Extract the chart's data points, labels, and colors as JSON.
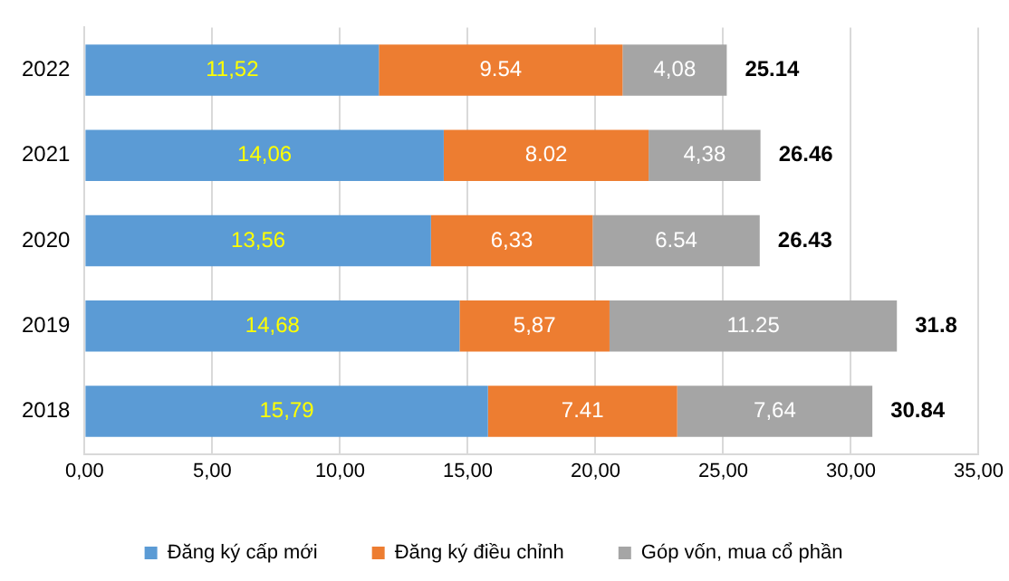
{
  "chart_data": {
    "type": "bar",
    "orientation": "horizontal",
    "stacked": true,
    "categories": [
      "2022",
      "2021",
      "2020",
      "2019",
      "2018"
    ],
    "series": [
      {
        "name": "Đăng ký cấp mới",
        "color": "#5b9bd5",
        "values": [
          11.52,
          14.06,
          13.56,
          14.68,
          15.79
        ],
        "value_labels": [
          "11,52",
          "14,06",
          "13,56",
          "14,68",
          "15,79"
        ]
      },
      {
        "name": "Đăng ký điều chỉnh",
        "color": "#ed7d31",
        "values": [
          9.54,
          8.02,
          6.33,
          5.87,
          7.41
        ],
        "value_labels": [
          "9.54",
          "8.02",
          "6,33",
          "5,87",
          "7.41"
        ]
      },
      {
        "name": "Góp vốn, mua cổ phần",
        "color": "#a5a5a5",
        "values": [
          4.08,
          4.38,
          6.54,
          11.25,
          7.64
        ],
        "value_labels": [
          "4,08",
          "4,38",
          "6.54",
          "11.25",
          "7,64"
        ]
      }
    ],
    "totals": [
      "25.14",
      "26.46",
      "26.43",
      "31.8",
      "30.84"
    ],
    "xlim": [
      0,
      35
    ],
    "xticks": [
      {
        "value": 0,
        "label": "0,00"
      },
      {
        "value": 5,
        "label": "5,00"
      },
      {
        "value": 10,
        "label": "10,00"
      },
      {
        "value": 15,
        "label": "15,00"
      },
      {
        "value": 20,
        "label": "20,00"
      },
      {
        "value": 25,
        "label": "25,00"
      },
      {
        "value": 30,
        "label": "30,00"
      },
      {
        "value": 35,
        "label": "35,00"
      }
    ],
    "grid": "x",
    "legend": "bottom"
  }
}
